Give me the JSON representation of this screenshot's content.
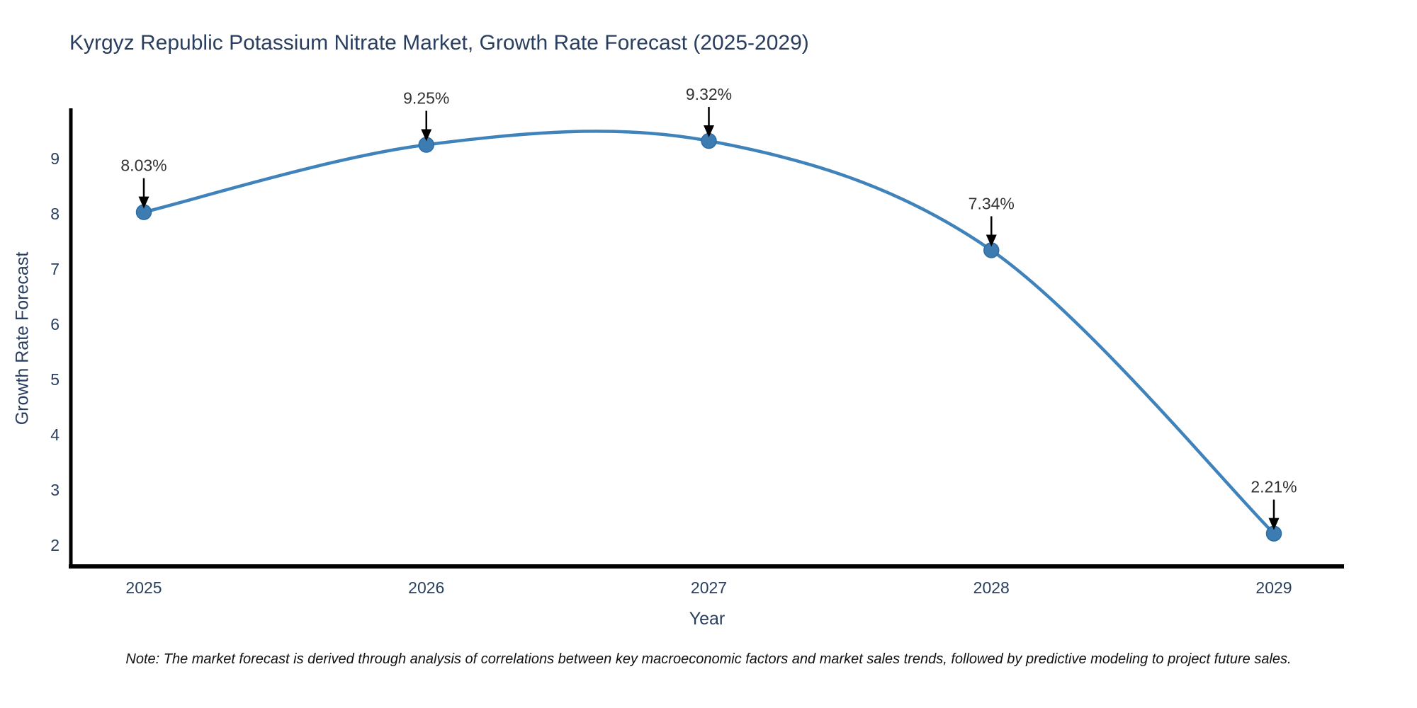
{
  "title": "Kyrgyz Republic Potassium Nitrate Market, Growth Rate Forecast (2025-2029)",
  "note": "Note: The market forecast is derived through analysis of correlations between key macroeconomic factors and market sales trends, followed by predictive modeling to project future sales.",
  "chart_data": {
    "type": "line",
    "title": "Kyrgyz Republic Potassium Nitrate Market, Growth Rate Forecast (2025-2029)",
    "xlabel": "Year",
    "ylabel": "Growth Rate Forecast",
    "categories": [
      "2025",
      "2026",
      "2027",
      "2028",
      "2029"
    ],
    "values": [
      8.03,
      9.25,
      9.32,
      7.34,
      2.21
    ],
    "point_labels": [
      "8.03%",
      "9.25%",
      "9.32%",
      "7.34%",
      "2.21%"
    ],
    "y_ticks": [
      2,
      3,
      4,
      5,
      6,
      7,
      8,
      9
    ],
    "ylim": [
      1.6,
      9.9
    ],
    "grid": false,
    "legend_position": "none",
    "line_shape": "spline",
    "colors": {
      "line": "#4083bb",
      "marker_fill": "#3d7cb1",
      "marker_edge": "#2e6da4",
      "axis_line": "#000000",
      "tick_text": "#2a3f5f",
      "title_text": "#2a3f5f",
      "annotation_text": "#333333",
      "annotation_arrow": "#000000",
      "background": "#ffffff"
    }
  }
}
